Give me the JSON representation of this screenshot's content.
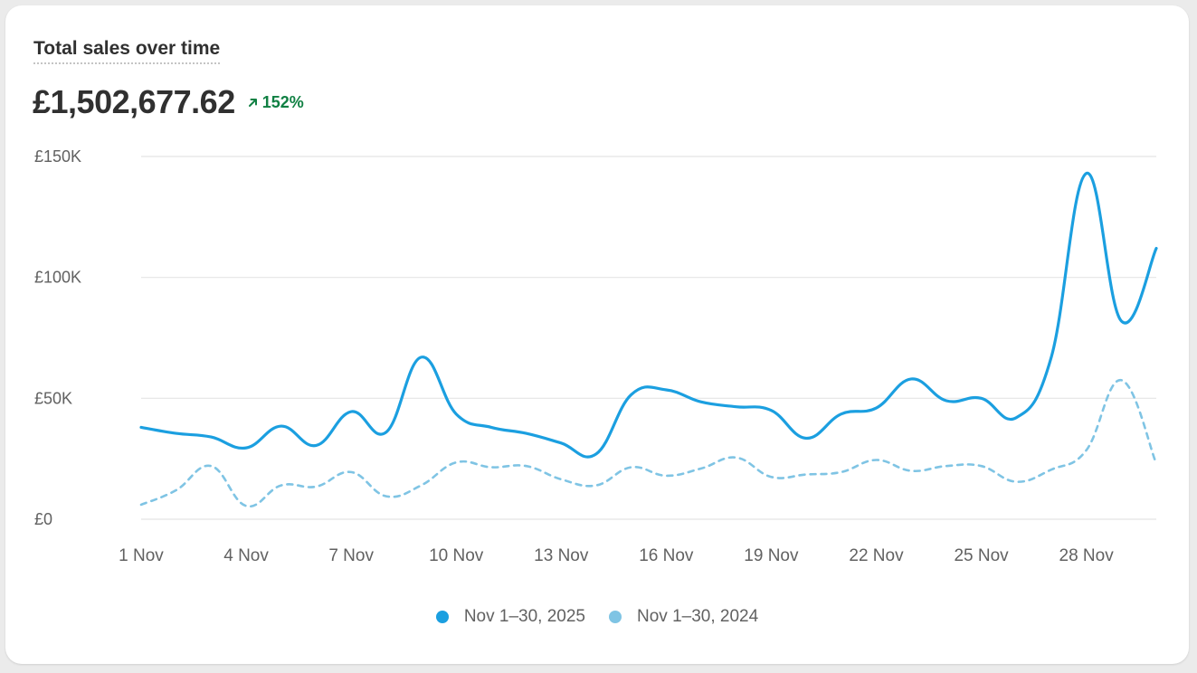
{
  "card": {
    "title": "Total sales over time",
    "total": "£1,502,677.62",
    "change": "152%",
    "change_direction": "up",
    "change_icon": "arrow-up-right-icon",
    "change_color": "#108043"
  },
  "colors": {
    "current": "#1b9fe0",
    "previous": "#7fc4e4",
    "grid": "#e4e4e4",
    "axis_text": "#616161"
  },
  "chart_data": {
    "type": "line",
    "title": "Total sales over time",
    "xlabel": "",
    "ylabel": "",
    "ylim": [
      0,
      150000
    ],
    "y_ticks": [
      {
        "value": 0,
        "label": "£0"
      },
      {
        "value": 50000,
        "label": "£50K"
      },
      {
        "value": 100000,
        "label": "£100K"
      },
      {
        "value": 150000,
        "label": "£150K"
      }
    ],
    "x": [
      1,
      2,
      3,
      4,
      5,
      6,
      7,
      8,
      9,
      10,
      11,
      12,
      13,
      14,
      15,
      16,
      17,
      18,
      19,
      20,
      21,
      22,
      23,
      24,
      25,
      26,
      27,
      28,
      29,
      30
    ],
    "x_ticks": [
      {
        "day": 1,
        "label": "1 Nov"
      },
      {
        "day": 4,
        "label": "4 Nov"
      },
      {
        "day": 7,
        "label": "7 Nov"
      },
      {
        "day": 10,
        "label": "10 Nov"
      },
      {
        "day": 13,
        "label": "13 Nov"
      },
      {
        "day": 16,
        "label": "16 Nov"
      },
      {
        "day": 19,
        "label": "19 Nov"
      },
      {
        "day": 22,
        "label": "22 Nov"
      },
      {
        "day": 25,
        "label": "25 Nov"
      },
      {
        "day": 28,
        "label": "28 Nov"
      }
    ],
    "grid": true,
    "legend_position": "bottom-center",
    "series": [
      {
        "name": "Nov 1–30, 2025",
        "style": "solid",
        "values": [
          38000,
          35500,
          34000,
          29500,
          38500,
          30500,
          44500,
          36000,
          67000,
          43500,
          38000,
          35500,
          31500,
          27000,
          51500,
          53500,
          48500,
          46500,
          45000,
          33500,
          43500,
          46000,
          58000,
          49000,
          50000,
          42000,
          67000,
          143000,
          82000,
          112000
        ]
      },
      {
        "name": "Nov 1–30, 2024",
        "style": "dashed",
        "values": [
          6000,
          12000,
          22000,
          5500,
          14000,
          13500,
          19500,
          9500,
          14000,
          23500,
          21500,
          22000,
          16500,
          14000,
          21500,
          18000,
          21000,
          25500,
          17500,
          18500,
          19500,
          24500,
          20000,
          22000,
          22000,
          15500,
          20500,
          28500,
          57500,
          23000
        ]
      }
    ]
  }
}
